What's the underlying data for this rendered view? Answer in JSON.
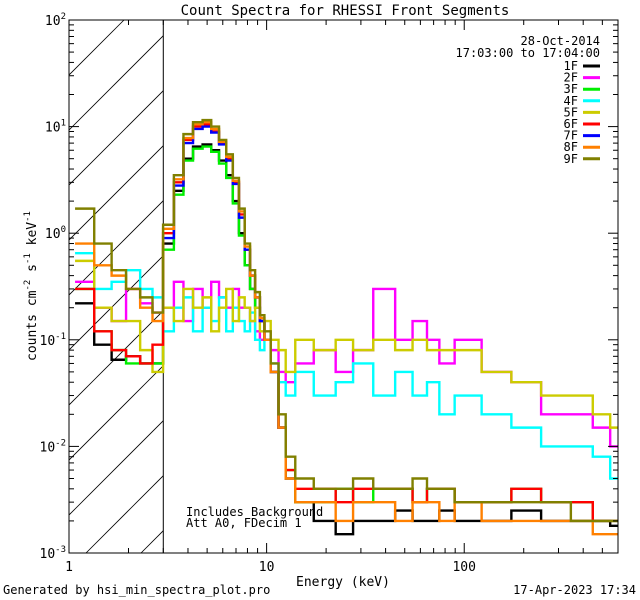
{
  "chart_data": {
    "type": "line",
    "title": "Count Spectra for RHESSI Front Segments",
    "xlabel": "Energy (keV)",
    "ylabel_main": "counts cm",
    "ylabel_sup1": "-2",
    "ylabel_mid": " s",
    "ylabel_sup2": "-1",
    "ylabel_tail": " keV",
    "ylabel_sup3": "-1",
    "xscale": "log",
    "yscale": "log",
    "xlim": [
      1,
      600
    ],
    "ylim": [
      0.001,
      100
    ],
    "x_ticks": [
      {
        "v": 1,
        "label": "1"
      },
      {
        "v": 10,
        "label": "10"
      },
      {
        "v": 100,
        "label": "100"
      }
    ],
    "y_ticks": [
      {
        "v": 0.001,
        "base": "10",
        "exp": "-3"
      },
      {
        "v": 0.01,
        "base": "10",
        "exp": "-2"
      },
      {
        "v": 0.1,
        "base": "10",
        "exp": "-1"
      },
      {
        "v": 1,
        "base": "10",
        "exp": "0"
      },
      {
        "v": 10,
        "base": "10",
        "exp": "1"
      },
      {
        "v": 100,
        "base": "10",
        "exp": "2"
      }
    ],
    "attenuator_region_max_keV": 3,
    "date": "28-Oct-2014",
    "time_range": "17:03:00 to 17:04:00",
    "annotations": [
      "Includes Background",
      "Att A0, FDecim 1"
    ],
    "legend_position": "top-right",
    "footer_left": "Generated by hsi_min_spectra_plot.pro",
    "footer_right": "17-Apr-2023 17:34",
    "series": [
      {
        "name": "1F",
        "color": "#000000",
        "x": [
          1.2,
          1.5,
          1.8,
          2.1,
          2.5,
          2.8,
          3.2,
          3.6,
          4.0,
          4.5,
          5.0,
          5.5,
          6.0,
          6.5,
          7.0,
          7.5,
          8.0,
          8.5,
          9.0,
          9.5,
          10.0,
          11.0,
          12.0,
          13.0,
          15,
          20,
          25,
          30,
          40,
          50,
          60,
          70,
          80,
          100,
          150,
          200,
          300,
          400,
          500,
          600
        ],
        "y": [
          0.22,
          0.09,
          0.065,
          0.07,
          0.06,
          0.06,
          0.8,
          2.5,
          5.0,
          6.5,
          6.8,
          6.0,
          4.8,
          3.5,
          2.0,
          1.0,
          0.5,
          0.3,
          0.2,
          0.15,
          0.1,
          0.05,
          0.015,
          0.005,
          0.003,
          0.002,
          0.0015,
          0.002,
          0.002,
          0.0025,
          0.002,
          0.002,
          0.0025,
          0.002,
          0.002,
          0.0025,
          0.002,
          0.002,
          0.002,
          0.0018
        ]
      },
      {
        "name": "2F",
        "color": "#ff00ff",
        "x": [
          1.2,
          1.5,
          1.8,
          2.1,
          2.5,
          2.8,
          3.2,
          3.6,
          4.0,
          4.5,
          5.0,
          5.5,
          6.0,
          6.5,
          7.0,
          7.5,
          8.0,
          8.5,
          9.0,
          9.5,
          10.0,
          11.0,
          12.0,
          13.0,
          15,
          20,
          25,
          30,
          40,
          50,
          60,
          70,
          80,
          100,
          150,
          200,
          300,
          400,
          500,
          600
        ],
        "y": [
          0.35,
          0.2,
          0.15,
          0.3,
          0.22,
          0.18,
          0.2,
          0.35,
          0.15,
          0.3,
          0.2,
          0.35,
          0.25,
          0.2,
          0.3,
          0.2,
          0.2,
          0.15,
          0.12,
          0.1,
          0.1,
          0.08,
          0.05,
          0.04,
          0.06,
          0.08,
          0.05,
          0.08,
          0.3,
          0.1,
          0.15,
          0.1,
          0.06,
          0.1,
          0.05,
          0.04,
          0.02,
          0.02,
          0.015,
          0.01
        ]
      },
      {
        "name": "3F",
        "color": "#00ee00",
        "x": [
          1.2,
          1.5,
          1.8,
          2.1,
          2.5,
          2.8,
          3.2,
          3.6,
          4.0,
          4.5,
          5.0,
          5.5,
          6.0,
          6.5,
          7.0,
          7.5,
          8.0,
          8.5,
          9.0,
          9.5,
          10.0,
          11.0,
          12.0,
          13.0,
          15,
          20,
          25,
          30,
          40,
          50,
          60,
          70,
          80,
          100,
          150,
          200,
          300,
          400,
          500,
          600
        ],
        "y": [
          0.3,
          0.12,
          0.08,
          0.06,
          0.06,
          0.06,
          0.7,
          2.3,
          4.8,
          6.2,
          6.5,
          5.8,
          4.5,
          3.3,
          1.9,
          0.95,
          0.5,
          0.3,
          0.2,
          0.15,
          0.1,
          0.05,
          0.015,
          0.006,
          0.003,
          0.003,
          0.004,
          0.003,
          0.004,
          0.004,
          0.003,
          0.004,
          0.004,
          0.003,
          0.003,
          0.004,
          0.003,
          0.003,
          0.002,
          0.002
        ]
      },
      {
        "name": "4F",
        "color": "#00ffff",
        "x": [
          1.2,
          1.5,
          1.8,
          2.1,
          2.5,
          2.8,
          3.2,
          3.6,
          4.0,
          4.5,
          5.0,
          5.5,
          6.0,
          6.5,
          7.0,
          7.5,
          8.0,
          8.5,
          9.0,
          9.5,
          10.0,
          11.0,
          12.0,
          13.0,
          15,
          20,
          25,
          30,
          40,
          50,
          60,
          70,
          80,
          100,
          150,
          200,
          300,
          400,
          500,
          600
        ],
        "y": [
          0.65,
          0.3,
          0.35,
          0.45,
          0.3,
          0.25,
          0.12,
          0.2,
          0.25,
          0.12,
          0.2,
          0.15,
          0.25,
          0.12,
          0.2,
          0.15,
          0.12,
          0.18,
          0.1,
          0.08,
          0.1,
          0.06,
          0.04,
          0.03,
          0.05,
          0.03,
          0.04,
          0.06,
          0.03,
          0.05,
          0.03,
          0.04,
          0.02,
          0.03,
          0.02,
          0.015,
          0.01,
          0.01,
          0.008,
          0.005
        ]
      },
      {
        "name": "5F",
        "color": "#cccc00",
        "x": [
          1.2,
          1.5,
          1.8,
          2.1,
          2.5,
          2.8,
          3.2,
          3.6,
          4.0,
          4.5,
          5.0,
          5.5,
          6.0,
          6.5,
          7.0,
          7.5,
          8.0,
          8.5,
          9.0,
          9.5,
          10.0,
          11.0,
          12.0,
          13.0,
          15,
          20,
          25,
          30,
          40,
          50,
          60,
          70,
          80,
          100,
          150,
          200,
          300,
          400,
          500,
          600
        ],
        "y": [
          0.55,
          0.2,
          0.15,
          0.15,
          0.08,
          0.05,
          0.2,
          0.15,
          0.3,
          0.2,
          0.25,
          0.12,
          0.2,
          0.3,
          0.15,
          0.25,
          0.2,
          0.15,
          0.2,
          0.12,
          0.15,
          0.1,
          0.08,
          0.05,
          0.1,
          0.08,
          0.1,
          0.08,
          0.1,
          0.08,
          0.1,
          0.08,
          0.08,
          0.08,
          0.05,
          0.04,
          0.03,
          0.03,
          0.02,
          0.015
        ]
      },
      {
        "name": "6F",
        "color": "#ff0000",
        "x": [
          1.2,
          1.5,
          1.8,
          2.1,
          2.5,
          2.8,
          3.2,
          3.6,
          4.0,
          4.5,
          5.0,
          5.5,
          6.0,
          6.5,
          7.0,
          7.5,
          8.0,
          8.5,
          9.0,
          9.5,
          10.0,
          11.0,
          12.0,
          13.0,
          15,
          20,
          25,
          30,
          40,
          50,
          60,
          70,
          80,
          100,
          150,
          200,
          300,
          400,
          500,
          600
        ],
        "y": [
          0.3,
          0.12,
          0.08,
          0.07,
          0.06,
          0.09,
          1.0,
          3.0,
          7.5,
          10.0,
          10.5,
          9.0,
          7.0,
          5.0,
          3.0,
          1.5,
          0.7,
          0.4,
          0.25,
          0.15,
          0.1,
          0.05,
          0.015,
          0.006,
          0.004,
          0.004,
          0.003,
          0.004,
          0.004,
          0.004,
          0.003,
          0.004,
          0.004,
          0.003,
          0.003,
          0.004,
          0.003,
          0.003,
          0.002,
          0.002
        ]
      },
      {
        "name": "7F",
        "color": "#0000ff",
        "x": [
          3.2,
          3.6,
          4.0,
          4.5,
          5.0,
          5.5,
          6.0,
          6.5,
          7.0,
          7.5,
          8.0,
          8.5,
          9.0,
          9.5,
          10.0,
          11.0,
          12.0
        ],
        "y": [
          0.9,
          2.8,
          7.0,
          9.5,
          10.0,
          8.8,
          6.8,
          4.8,
          2.9,
          1.4,
          0.7,
          0.4,
          0.25,
          0.15,
          0.1,
          0.05,
          0.015
        ]
      },
      {
        "name": "8F",
        "color": "#ff8000",
        "x": [
          1.2,
          1.5,
          1.8,
          2.1,
          2.5,
          2.8,
          3.2,
          3.6,
          4.0,
          4.5,
          5.0,
          5.5,
          6.0,
          6.5,
          7.0,
          7.5,
          8.0,
          8.5,
          9.0,
          9.5,
          10.0,
          11.0,
          12.0,
          13.0,
          15,
          20,
          25,
          30,
          40,
          50,
          60,
          70,
          80,
          100,
          150,
          200,
          300,
          400,
          500,
          600
        ],
        "y": [
          0.8,
          0.5,
          0.4,
          0.3,
          0.2,
          0.15,
          1.1,
          3.2,
          7.8,
          10.5,
          11.0,
          9.5,
          7.2,
          5.2,
          3.1,
          1.6,
          0.75,
          0.4,
          0.25,
          0.16,
          0.1,
          0.05,
          0.015,
          0.005,
          0.003,
          0.003,
          0.002,
          0.003,
          0.003,
          0.002,
          0.003,
          0.003,
          0.002,
          0.003,
          0.002,
          0.002,
          0.002,
          0.002,
          0.0015,
          0.0015
        ]
      },
      {
        "name": "9F",
        "color": "#808000",
        "x": [
          1.2,
          1.5,
          1.8,
          2.1,
          2.5,
          2.8,
          3.2,
          3.6,
          4.0,
          4.5,
          5.0,
          5.5,
          6.0,
          6.5,
          7.0,
          7.5,
          8.0,
          8.5,
          9.0,
          9.5,
          10.0,
          11.0,
          12.0,
          13.0,
          15,
          20,
          25,
          30,
          40,
          50,
          60,
          70,
          80,
          100,
          150,
          200,
          300,
          400,
          500,
          600
        ],
        "y": [
          1.7,
          0.8,
          0.45,
          0.3,
          0.25,
          0.18,
          1.2,
          3.5,
          8.5,
          11.0,
          11.5,
          10.0,
          7.5,
          5.5,
          3.3,
          1.7,
          0.8,
          0.45,
          0.28,
          0.17,
          0.12,
          0.06,
          0.02,
          0.008,
          0.005,
          0.004,
          0.004,
          0.005,
          0.004,
          0.004,
          0.005,
          0.004,
          0.004,
          0.003,
          0.003,
          0.003,
          0.003,
          0.002,
          0.002,
          0.002
        ]
      }
    ]
  }
}
